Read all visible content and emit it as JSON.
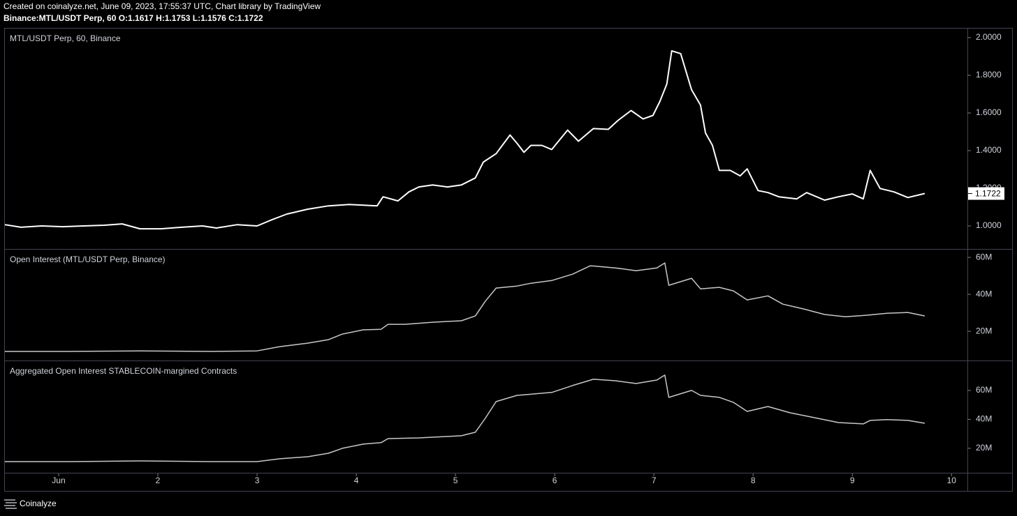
{
  "header": {
    "credit": "Created on coinalyze.net, June 09, 2023, 17:55:37 UTC, Chart library by TradingView",
    "symbol": "Binance:MTL/USDT Perp, 60 O:1.1617 H:1.1753 L:1.1576 C:1.1722"
  },
  "chart_data": [
    {
      "type": "line",
      "title": "MTL/USDT Perp, 60, Binance",
      "color": "#ffffff",
      "xlim": [
        0.458,
        10.16
      ],
      "ylim": [
        0.878,
        2.048
      ],
      "yticks": [
        {
          "value": 1,
          "label": "1.0000"
        },
        {
          "value": 1.2,
          "label": "1.2000"
        },
        {
          "value": 1.4,
          "label": "1.4000"
        },
        {
          "value": 1.6,
          "label": "1.6000"
        },
        {
          "value": 1.8,
          "label": "1.8000"
        },
        {
          "value": 2,
          "label": "2.0000"
        }
      ],
      "x": [
        0.458,
        0.62,
        0.83,
        1.04,
        1.25,
        1.46,
        1.64,
        1.82,
        2.03,
        2.24,
        2.45,
        2.59,
        2.8,
        3.0,
        3.15,
        3.3,
        3.51,
        3.72,
        3.93,
        4.21,
        4.27,
        4.42,
        4.53,
        4.63,
        4.77,
        4.92,
        5.06,
        5.2,
        5.28,
        5.41,
        5.55,
        5.62,
        5.69,
        5.76,
        5.87,
        5.97,
        6.13,
        6.24,
        6.39,
        6.54,
        6.64,
        6.77,
        6.89,
        6.99,
        7.06,
        7.13,
        7.18,
        7.27,
        7.38,
        7.47,
        7.52,
        7.59,
        7.66,
        7.77,
        7.87,
        7.94,
        8.05,
        8.15,
        8.26,
        8.44,
        8.54,
        8.72,
        8.86,
        9.0,
        9.11,
        9.18,
        9.28,
        9.42,
        9.56,
        9.73
      ],
      "values": [
        1.007,
        0.993,
        1.0,
        0.996,
        1.0,
        1.004,
        1.011,
        0.985,
        0.985,
        0.993,
        1.0,
        0.989,
        1.007,
        1.0,
        1.033,
        1.063,
        1.089,
        1.107,
        1.114,
        1.107,
        1.155,
        1.133,
        1.181,
        1.207,
        1.218,
        1.207,
        1.218,
        1.255,
        1.339,
        1.384,
        1.483,
        1.439,
        1.391,
        1.428,
        1.428,
        1.406,
        1.509,
        1.45,
        1.517,
        1.513,
        1.561,
        1.613,
        1.568,
        1.587,
        1.661,
        1.753,
        1.93,
        1.915,
        1.723,
        1.642,
        1.494,
        1.428,
        1.295,
        1.295,
        1.266,
        1.303,
        1.188,
        1.177,
        1.155,
        1.144,
        1.177,
        1.137,
        1.155,
        1.17,
        1.144,
        1.295,
        1.199,
        1.181,
        1.151,
        1.1722
      ]
    },
    {
      "type": "line",
      "title": "Open Interest (MTL/USDT Perp, Binance)",
      "color": "#c8c8c8",
      "xlim": [
        0.458,
        10.16
      ],
      "ylim": [
        4.2,
        64.2
      ],
      "yticks": [
        {
          "value": 20,
          "label": "20M"
        },
        {
          "value": 40,
          "label": "40M"
        },
        {
          "value": 60,
          "label": "60M"
        }
      ],
      "x": [
        0.458,
        1.11,
        1.82,
        2.52,
        3.0,
        3.23,
        3.51,
        3.72,
        3.86,
        4.07,
        4.25,
        4.32,
        4.49,
        4.77,
        5.06,
        5.2,
        5.3,
        5.41,
        5.62,
        5.76,
        5.97,
        6.18,
        6.36,
        6.61,
        6.82,
        7.03,
        7.11,
        7.15,
        7.38,
        7.47,
        7.66,
        7.8,
        7.94,
        8.15,
        8.3,
        8.51,
        8.72,
        8.93,
        9.14,
        9.35,
        9.56,
        9.73
      ],
      "values": [
        9.1,
        9.1,
        9.4,
        9.1,
        9.4,
        11.7,
        13.6,
        15.5,
        18.5,
        20.8,
        21.1,
        23.8,
        23.8,
        24.9,
        25.7,
        28.3,
        36.2,
        43.4,
        44.5,
        46.0,
        47.5,
        50.9,
        55.5,
        54.3,
        52.8,
        54.3,
        57.0,
        44.9,
        48.7,
        43.0,
        43.8,
        41.9,
        37.0,
        39.2,
        34.7,
        32.1,
        29.1,
        27.9,
        28.7,
        29.8,
        30.2,
        28.3
      ]
    },
    {
      "type": "line",
      "title": "Aggregated Open Interest STABLECOIN-margined Contracts",
      "color": "#c8c8c8",
      "xlim": [
        0.458,
        10.16
      ],
      "ylim": [
        3.1,
        80.2
      ],
      "yticks": [
        {
          "value": 20,
          "label": "20M"
        },
        {
          "value": 40,
          "label": "40M"
        },
        {
          "value": 60,
          "label": "60M"
        }
      ],
      "xticks": [
        {
          "value": 1,
          "label": "Jun"
        },
        2,
        3,
        4,
        5,
        6,
        7,
        8,
        9,
        10
      ],
      "x": [
        0.458,
        1.11,
        1.82,
        2.52,
        3.0,
        3.23,
        3.51,
        3.72,
        3.86,
        4.07,
        4.25,
        4.32,
        4.63,
        5.06,
        5.2,
        5.3,
        5.41,
        5.62,
        5.97,
        6.18,
        6.39,
        6.61,
        6.82,
        7.03,
        7.11,
        7.15,
        7.38,
        7.47,
        7.66,
        7.8,
        7.94,
        8.15,
        8.37,
        8.58,
        8.86,
        9.11,
        9.18,
        9.35,
        9.56,
        9.73
      ],
      "values": [
        10.8,
        10.8,
        11.3,
        10.8,
        10.8,
        12.8,
        14.2,
        16.6,
        20.0,
        22.9,
        23.9,
        26.7,
        27.2,
        28.7,
        31.1,
        40.7,
        52.3,
        56.6,
        58.6,
        63.4,
        67.7,
        66.7,
        64.8,
        67.2,
        70.6,
        55.2,
        60.0,
        56.6,
        55.2,
        51.8,
        45.5,
        48.9,
        44.6,
        41.7,
        37.8,
        36.9,
        39.3,
        39.8,
        39.3,
        37.3
      ]
    }
  ],
  "footer": {
    "brand": "Coinalyze"
  }
}
